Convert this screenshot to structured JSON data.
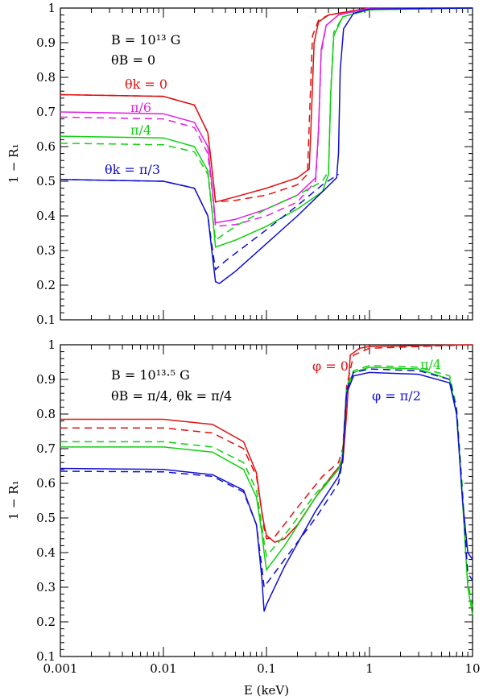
{
  "chart_data": [
    {
      "type": "line",
      "panel": "top",
      "xscale": "log",
      "xlim": [
        0.001,
        10
      ],
      "ylim": [
        0.1,
        1.0
      ],
      "ylabel": "1 − R₁",
      "xlabel": "",
      "yticks": [
        "0.1",
        "0.2",
        "0.3",
        "0.4",
        "0.5",
        "0.6",
        "0.7",
        "0.8",
        "0.9",
        "1"
      ],
      "xticks": [],
      "grid": false,
      "annotations": [
        {
          "text": "B = 10¹³ G",
          "color": "#000000"
        },
        {
          "text": "θB = 0",
          "color": "#000000"
        },
        {
          "text": "θk = 0",
          "color": "#e01010"
        },
        {
          "text": "π/6",
          "color": "#e020e0"
        },
        {
          "text": "π/4",
          "color": "#10d010"
        },
        {
          "text": "θk = π/3",
          "color": "#1010d0"
        }
      ],
      "series": [
        {
          "name": "θk=0 solid",
          "color": "#e01010",
          "dash": false,
          "x": [
            0.001,
            0.01,
            0.02,
            0.027,
            0.03,
            0.032,
            0.05,
            0.1,
            0.2,
            0.26,
            0.27,
            0.29,
            0.32,
            0.4,
            1,
            10
          ],
          "y": [
            0.75,
            0.745,
            0.72,
            0.64,
            0.52,
            0.44,
            0.455,
            0.48,
            0.51,
            0.535,
            0.65,
            0.9,
            0.96,
            0.98,
            1.0,
            1.0
          ]
        },
        {
          "name": "θk=0 dashed",
          "color": "#e01010",
          "dash": true,
          "x": [
            0.001,
            0.01,
            0.02,
            0.027,
            0.03,
            0.032,
            0.05,
            0.1,
            0.2,
            0.25,
            0.26,
            0.28,
            0.32,
            0.4,
            1,
            10
          ],
          "y": [
            0.75,
            0.745,
            0.72,
            0.64,
            0.52,
            0.44,
            0.445,
            0.46,
            0.49,
            0.52,
            0.66,
            0.92,
            0.965,
            0.98,
            1.0,
            1.0
          ]
        },
        {
          "name": "π/6 solid",
          "color": "#e020e0",
          "dash": false,
          "x": [
            0.001,
            0.01,
            0.02,
            0.027,
            0.03,
            0.032,
            0.05,
            0.1,
            0.2,
            0.3,
            0.32,
            0.34,
            0.38,
            0.5,
            1,
            10
          ],
          "y": [
            0.7,
            0.695,
            0.67,
            0.6,
            0.47,
            0.38,
            0.39,
            0.42,
            0.46,
            0.51,
            0.65,
            0.88,
            0.95,
            0.98,
            1.0,
            1.0
          ]
        },
        {
          "name": "π/6 dashed",
          "color": "#e020e0",
          "dash": true,
          "x": [
            0.001,
            0.01,
            0.02,
            0.027,
            0.03,
            0.032,
            0.05,
            0.1,
            0.2,
            0.3,
            0.32,
            0.34,
            0.38,
            0.5,
            1,
            10
          ],
          "y": [
            0.685,
            0.68,
            0.655,
            0.58,
            0.46,
            0.37,
            0.375,
            0.4,
            0.44,
            0.5,
            0.64,
            0.87,
            0.95,
            0.98,
            1.0,
            1.0
          ]
        },
        {
          "name": "π/4 solid",
          "color": "#10d010",
          "dash": false,
          "x": [
            0.001,
            0.01,
            0.02,
            0.027,
            0.03,
            0.032,
            0.05,
            0.1,
            0.2,
            0.35,
            0.4,
            0.42,
            0.45,
            0.55,
            1,
            10
          ],
          "y": [
            0.63,
            0.625,
            0.6,
            0.53,
            0.4,
            0.31,
            0.33,
            0.37,
            0.42,
            0.47,
            0.52,
            0.75,
            0.92,
            0.975,
            0.995,
            1.0
          ]
        },
        {
          "name": "π/4 dashed",
          "color": "#10d010",
          "dash": true,
          "x": [
            0.001,
            0.01,
            0.02,
            0.027,
            0.03,
            0.032,
            0.05,
            0.1,
            0.2,
            0.35,
            0.4,
            0.42,
            0.45,
            0.55,
            1,
            10
          ],
          "y": [
            0.61,
            0.605,
            0.585,
            0.52,
            0.4,
            0.33,
            0.37,
            0.42,
            0.46,
            0.5,
            0.53,
            0.76,
            0.93,
            0.975,
            0.995,
            1.0
          ]
        },
        {
          "name": "θk=π/3 solid",
          "color": "#1010d0",
          "dash": false,
          "x": [
            0.001,
            0.01,
            0.02,
            0.027,
            0.03,
            0.032,
            0.035,
            0.05,
            0.1,
            0.2,
            0.35,
            0.48,
            0.5,
            0.52,
            0.56,
            0.7,
            1,
            10
          ],
          "y": [
            0.505,
            0.5,
            0.48,
            0.4,
            0.28,
            0.21,
            0.205,
            0.24,
            0.32,
            0.4,
            0.47,
            0.51,
            0.58,
            0.82,
            0.94,
            0.985,
            0.997,
            1.0
          ]
        },
        {
          "name": "θk=π/3 dashed",
          "color": "#1010d0",
          "dash": true,
          "x": [
            0.001,
            0.01,
            0.02,
            0.027,
            0.03,
            0.032,
            0.04,
            0.1,
            0.2,
            0.35,
            0.5
          ],
          "y": [
            0.505,
            0.5,
            0.48,
            0.4,
            0.3,
            0.245,
            0.27,
            0.36,
            0.43,
            0.49,
            0.52
          ]
        }
      ]
    },
    {
      "type": "line",
      "panel": "bottom",
      "xscale": "log",
      "xlim": [
        0.001,
        10
      ],
      "ylim": [
        0.1,
        1.0
      ],
      "ylabel": "1 − R₁",
      "xlabel": "E (keV)",
      "yticks": [
        "0.1",
        "0.2",
        "0.3",
        "0.4",
        "0.5",
        "0.6",
        "0.7",
        "0.8",
        "0.9",
        "1"
      ],
      "xticks": [
        "0.001",
        "0.01",
        "0.1",
        "1",
        "10"
      ],
      "grid": false,
      "annotations": [
        {
          "text": "B = 10¹³·⁵ G",
          "color": "#000000"
        },
        {
          "text": "θB = π/4,  θk = π/4",
          "color": "#000000"
        },
        {
          "text": "φ = 0",
          "color": "#e01010"
        },
        {
          "text": "π/4",
          "color": "#10d010"
        },
        {
          "text": "φ = π/2",
          "color": "#1010d0"
        }
      ],
      "series": [
        {
          "name": "φ=0 solid",
          "color": "#e01010",
          "dash": false,
          "x": [
            0.001,
            0.01,
            0.03,
            0.06,
            0.08,
            0.09,
            0.095,
            0.1,
            0.12,
            0.15,
            0.2,
            0.3,
            0.45,
            0.55,
            0.6,
            0.65,
            0.8,
            1,
            10
          ],
          "y": [
            0.785,
            0.785,
            0.77,
            0.72,
            0.63,
            0.52,
            0.48,
            0.45,
            0.43,
            0.44,
            0.48,
            0.56,
            0.63,
            0.66,
            0.8,
            0.97,
            0.99,
            0.995,
            1.0
          ]
        },
        {
          "name": "φ=0 dashed",
          "color": "#e01010",
          "dash": true,
          "x": [
            0.001,
            0.01,
            0.03,
            0.06,
            0.08,
            0.09,
            0.095,
            0.1,
            0.12,
            0.2,
            0.35,
            0.5,
            0.55,
            0.6,
            0.7,
            1,
            10
          ],
          "y": [
            0.76,
            0.76,
            0.745,
            0.7,
            0.62,
            0.52,
            0.47,
            0.44,
            0.445,
            0.53,
            0.62,
            0.66,
            0.7,
            0.88,
            0.97,
            0.99,
            1.0
          ]
        },
        {
          "name": "π/4 solid",
          "color": "#10d010",
          "dash": false,
          "x": [
            0.001,
            0.01,
            0.03,
            0.06,
            0.08,
            0.09,
            0.095,
            0.1,
            0.15,
            0.3,
            0.5,
            0.55,
            0.6,
            0.7,
            1,
            3,
            6,
            7,
            8,
            9,
            10
          ],
          "y": [
            0.705,
            0.705,
            0.69,
            0.64,
            0.56,
            0.46,
            0.4,
            0.35,
            0.42,
            0.56,
            0.64,
            0.68,
            0.87,
            0.92,
            0.935,
            0.93,
            0.9,
            0.8,
            0.55,
            0.3,
            0.22
          ]
        },
        {
          "name": "π/4 dashed",
          "color": "#10d010",
          "dash": true,
          "x": [
            0.001,
            0.01,
            0.03,
            0.06,
            0.08,
            0.09,
            0.095,
            0.1,
            0.15,
            0.3,
            0.5,
            0.55,
            0.6,
            0.7,
            1,
            3,
            6,
            7,
            8,
            9,
            10
          ],
          "y": [
            0.72,
            0.72,
            0.705,
            0.66,
            0.58,
            0.48,
            0.43,
            0.39,
            0.45,
            0.57,
            0.64,
            0.69,
            0.88,
            0.925,
            0.94,
            0.935,
            0.91,
            0.82,
            0.58,
            0.32,
            0.24
          ]
        },
        {
          "name": "φ=π/2 solid",
          "color": "#1010d0",
          "dash": false,
          "x": [
            0.001,
            0.01,
            0.03,
            0.06,
            0.08,
            0.09,
            0.095,
            0.1,
            0.15,
            0.3,
            0.5,
            0.55,
            0.6,
            0.7,
            1,
            3,
            6,
            7,
            8,
            9,
            10
          ],
          "y": [
            0.643,
            0.64,
            0.625,
            0.58,
            0.48,
            0.33,
            0.23,
            0.25,
            0.36,
            0.52,
            0.62,
            0.67,
            0.86,
            0.91,
            0.92,
            0.915,
            0.89,
            0.8,
            0.55,
            0.4,
            0.38
          ]
        },
        {
          "name": "φ=π/2 dashed",
          "color": "#1010d0",
          "dash": true,
          "x": [
            0.001,
            0.01,
            0.03,
            0.06,
            0.08,
            0.09,
            0.095,
            0.1,
            0.15,
            0.3,
            0.5,
            0.55,
            0.6,
            0.7,
            1,
            3,
            6,
            7,
            8,
            9,
            10
          ],
          "y": [
            0.635,
            0.633,
            0.62,
            0.575,
            0.48,
            0.36,
            0.3,
            0.31,
            0.38,
            0.5,
            0.6,
            0.67,
            0.87,
            0.92,
            0.93,
            0.925,
            0.9,
            0.81,
            0.56,
            0.34,
            0.32
          ]
        }
      ]
    }
  ]
}
